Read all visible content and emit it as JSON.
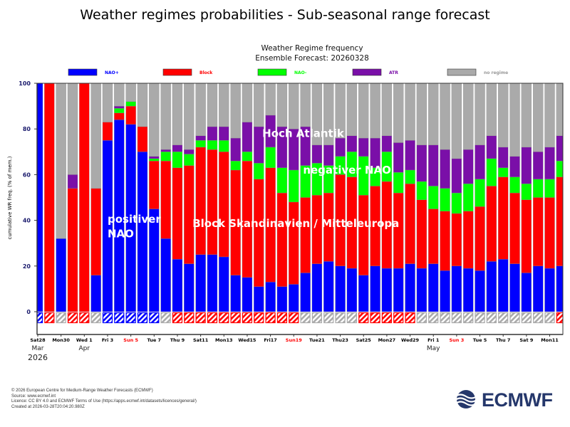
{
  "page_title": "Weather regimes probabilities - Sub-seasonal range forecast",
  "footer": [
    "© 2026 European Centre for Medium-Range Weather Forecasts (ECMWF)",
    "Source: www.ecmwf.int",
    "Licence: CC BY 4.0 and ECMWF Terms of Use (https://apps.ecmwf.int/datasets/licences/general/)",
    "Created at 2026-03-28T20:04:20.980Z"
  ],
  "logo": {
    "text": "ECMWF",
    "color": "#25376b"
  },
  "chart_data": {
    "type": "bar",
    "stacked": true,
    "title": "Weather Regime frequency",
    "subtitle": "Ensemble Forecast: 20260328",
    "ylabel": "cumulative WR freq. (% of mem.)",
    "xlabel": "",
    "ylim": [
      0,
      100
    ],
    "yticks": [
      0,
      20,
      40,
      60,
      80,
      100
    ],
    "grid": false,
    "legend_placement": "top",
    "categories": [
      "2026-03-28",
      "2026-03-29",
      "2026-03-30",
      "2026-03-31",
      "2026-04-01",
      "2026-04-02",
      "2026-04-03",
      "2026-04-04",
      "2026-04-05",
      "2026-04-06",
      "2026-04-07",
      "2026-04-08",
      "2026-04-09",
      "2026-04-10",
      "2026-04-11",
      "2026-04-12",
      "2026-04-13",
      "2026-04-14",
      "2026-04-15",
      "2026-04-16",
      "2026-04-17",
      "2026-04-18",
      "2026-04-19",
      "2026-04-20",
      "2026-04-21",
      "2026-04-22",
      "2026-04-23",
      "2026-04-24",
      "2026-04-25",
      "2026-04-26",
      "2026-04-27",
      "2026-04-28",
      "2026-04-29",
      "2026-04-30",
      "2026-05-01",
      "2026-05-02",
      "2026-05-03",
      "2026-05-04",
      "2026-05-05",
      "2026-05-06",
      "2026-05-07",
      "2026-05-08",
      "2026-05-09",
      "2026-05-10",
      "2026-05-11",
      "2026-05-12"
    ],
    "series": [
      {
        "name": "NAO+",
        "color": "#0000ff",
        "values": [
          100,
          0,
          32,
          0,
          0,
          16,
          75,
          84,
          82,
          70,
          45,
          32,
          23,
          21,
          25,
          25,
          24,
          16,
          15,
          11,
          13,
          11,
          12,
          17,
          21,
          22,
          20,
          19,
          16,
          20,
          19,
          19,
          21,
          19,
          21,
          18,
          20,
          19,
          18,
          22,
          23,
          21,
          17,
          20,
          19,
          20
        ]
      },
      {
        "name": "Block",
        "color": "#ff0000",
        "values": [
          0,
          100,
          0,
          54,
          100,
          38,
          8,
          3,
          8,
          11,
          21,
          34,
          40,
          43,
          47,
          46,
          46,
          46,
          51,
          47,
          50,
          41,
          36,
          33,
          30,
          30,
          40,
          40,
          35,
          35,
          38,
          33,
          35,
          30,
          24,
          26,
          23,
          25,
          28,
          33,
          36,
          31,
          32,
          30,
          31,
          39
        ]
      },
      {
        "name": "NAO-",
        "color": "#00ff00",
        "values": [
          0,
          0,
          0,
          0,
          0,
          0,
          0,
          2,
          2,
          0,
          1,
          4,
          7,
          5,
          3,
          4,
          5,
          4,
          4,
          7,
          9,
          11,
          14,
          14,
          14,
          12,
          8,
          11,
          17,
          8,
          13,
          9,
          6,
          8,
          10,
          10,
          9,
          12,
          12,
          12,
          4,
          7,
          7,
          8,
          8,
          7
        ]
      },
      {
        "name": "ATR",
        "color": "#7a0fa8",
        "values": [
          0,
          0,
          0,
          6,
          0,
          0,
          0,
          1,
          0,
          0,
          1,
          1,
          3,
          2,
          2,
          6,
          6,
          10,
          13,
          16,
          14,
          18,
          18,
          17,
          8,
          9,
          8,
          7,
          8,
          13,
          7,
          13,
          13,
          16,
          18,
          17,
          15,
          15,
          15,
          10,
          9,
          9,
          16,
          12,
          14,
          11
        ]
      },
      {
        "name": "no regime",
        "color": "#aaaaaa",
        "values": [
          0,
          0,
          68,
          40,
          0,
          46,
          17,
          10,
          8,
          19,
          32,
          29,
          27,
          29,
          23,
          19,
          19,
          24,
          17,
          19,
          14,
          19,
          20,
          19,
          27,
          27,
          24,
          23,
          24,
          24,
          23,
          26,
          25,
          27,
          27,
          29,
          33,
          29,
          27,
          23,
          28,
          32,
          28,
          30,
          28,
          23
        ]
      }
    ],
    "bottom_markers": [
      "NAO+",
      "Block",
      "no regime",
      "Block",
      "Block",
      "no regime",
      "NAO+",
      "NAO+",
      "NAO+",
      "NAO+",
      "NAO+",
      "no regime",
      "Block",
      "Block",
      "Block",
      "Block",
      "Block",
      "Block",
      "Block",
      "Block",
      "Block",
      "Block",
      "Block",
      "no regime",
      "no regime",
      "no regime",
      "no regime",
      "no regime",
      "Block",
      "Block",
      "Block",
      "Block",
      "Block",
      "no regime",
      "no regime",
      "no regime",
      "no regime",
      "no regime",
      "no regime",
      "no regime",
      "no regime",
      "no regime",
      "no regime",
      "no regime",
      "no regime",
      "Block"
    ],
    "xtick_labels": [
      {
        "day": 0,
        "label": "Sat28",
        "weekend": false
      },
      {
        "day": 2,
        "label": "Mon30",
        "weekend": false
      },
      {
        "day": 4,
        "label": "Wed 1",
        "weekend": false
      },
      {
        "day": 6,
        "label": "Fri 3",
        "weekend": false
      },
      {
        "day": 8,
        "label": "Sun 5",
        "weekend": true
      },
      {
        "day": 10,
        "label": "Tue 7",
        "weekend": false
      },
      {
        "day": 12,
        "label": "Thu 9",
        "weekend": false
      },
      {
        "day": 14,
        "label": "Sat11",
        "weekend": false
      },
      {
        "day": 16,
        "label": "Mon13",
        "weekend": false
      },
      {
        "day": 18,
        "label": "Wed15",
        "weekend": false
      },
      {
        "day": 20,
        "label": "Fri17",
        "weekend": false
      },
      {
        "day": 22,
        "label": "Sun19",
        "weekend": true
      },
      {
        "day": 24,
        "label": "Tue21",
        "weekend": false
      },
      {
        "day": 26,
        "label": "Thu23",
        "weekend": false
      },
      {
        "day": 28,
        "label": "Sat25",
        "weekend": false
      },
      {
        "day": 30,
        "label": "Mon27",
        "weekend": false
      },
      {
        "day": 32,
        "label": "Wed29",
        "weekend": false
      },
      {
        "day": 34,
        "label": "Fri 1",
        "weekend": false
      },
      {
        "day": 36,
        "label": "Sun 3",
        "weekend": true
      },
      {
        "day": 38,
        "label": "Tue 5",
        "weekend": false
      },
      {
        "day": 40,
        "label": "Thu 7",
        "weekend": false
      },
      {
        "day": 42,
        "label": "Sat 9",
        "weekend": false
      },
      {
        "day": 44,
        "label": "Mon11",
        "weekend": false
      }
    ],
    "month_labels": [
      {
        "day": 0,
        "label": "Mar"
      },
      {
        "day": 4,
        "label": "Apr"
      },
      {
        "day": 34,
        "label": "May"
      }
    ],
    "year_label": "2026",
    "annotations": [
      {
        "text": "positiver",
        "day": 6,
        "y": 39
      },
      {
        "text": "NAO",
        "day": 6,
        "y": 32.5
      },
      {
        "text": "Block Skandinavien / Mitteleuropa",
        "day": 13.3,
        "y": 37
      },
      {
        "text": "Hoch Atlantik",
        "day": 19.3,
        "y": 76.5
      },
      {
        "text": "negativer NAO",
        "day": 22.8,
        "y": 60.5
      }
    ]
  }
}
